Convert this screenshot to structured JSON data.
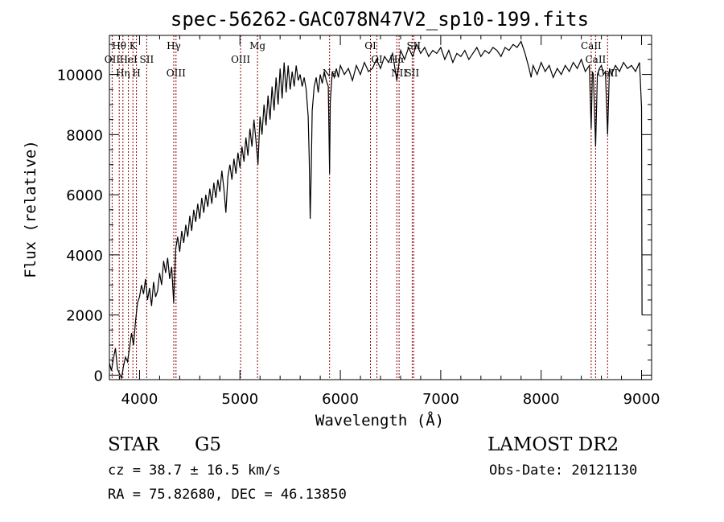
{
  "chart_data": {
    "type": "line",
    "title": "spec-56262-GAC078N47V2_sp10-199.fits",
    "xlabel": "Wavelength (Å)",
    "ylabel": "Flux (relative)",
    "xlim": [
      3700,
      9100
    ],
    "ylim": [
      -150,
      11300
    ],
    "x_ticks": [
      4000,
      5000,
      6000,
      7000,
      8000,
      9000
    ],
    "y_ticks": [
      0,
      2000,
      4000,
      6000,
      8000,
      10000
    ],
    "grid": false,
    "colors": {
      "spectrum": "#000000",
      "line_markers": "#8b0000",
      "axes": "#000000"
    },
    "series": [
      {
        "points": [
          [
            3700,
            400
          ],
          [
            3720,
            150
          ],
          [
            3740,
            550
          ],
          [
            3760,
            900
          ],
          [
            3780,
            200
          ],
          [
            3800,
            50
          ],
          [
            3820,
            -100
          ],
          [
            3840,
            300
          ],
          [
            3860,
            600
          ],
          [
            3880,
            450
          ],
          [
            3900,
            900
          ],
          [
            3920,
            1400
          ],
          [
            3940,
            1000
          ],
          [
            3960,
            1800
          ],
          [
            3980,
            2400
          ],
          [
            4000,
            2600
          ],
          [
            4020,
            3000
          ],
          [
            4040,
            2700
          ],
          [
            4060,
            3200
          ],
          [
            4080,
            2500
          ],
          [
            4100,
            2900
          ],
          [
            4120,
            2300
          ],
          [
            4140,
            3100
          ],
          [
            4160,
            2600
          ],
          [
            4180,
            2800
          ],
          [
            4200,
            3400
          ],
          [
            4220,
            3000
          ],
          [
            4240,
            3800
          ],
          [
            4260,
            3400
          ],
          [
            4280,
            3900
          ],
          [
            4300,
            3200
          ],
          [
            4320,
            3600
          ],
          [
            4340,
            2400
          ],
          [
            4360,
            4200
          ],
          [
            4380,
            4600
          ],
          [
            4400,
            4100
          ],
          [
            4420,
            4800
          ],
          [
            4440,
            4400
          ],
          [
            4460,
            5000
          ],
          [
            4480,
            4600
          ],
          [
            4500,
            5300
          ],
          [
            4520,
            4800
          ],
          [
            4540,
            5500
          ],
          [
            4560,
            5100
          ],
          [
            4580,
            5700
          ],
          [
            4600,
            5200
          ],
          [
            4620,
            5900
          ],
          [
            4640,
            5400
          ],
          [
            4660,
            6000
          ],
          [
            4680,
            5600
          ],
          [
            4700,
            6200
          ],
          [
            4720,
            5700
          ],
          [
            4740,
            6400
          ],
          [
            4760,
            5900
          ],
          [
            4780,
            6500
          ],
          [
            4800,
            6100
          ],
          [
            4820,
            6800
          ],
          [
            4840,
            6200
          ],
          [
            4860,
            5400
          ],
          [
            4880,
            6600
          ],
          [
            4900,
            7000
          ],
          [
            4920,
            6500
          ],
          [
            4940,
            7200
          ],
          [
            4960,
            6700
          ],
          [
            4980,
            7400
          ],
          [
            5000,
            6900
          ],
          [
            5020,
            7600
          ],
          [
            5040,
            7100
          ],
          [
            5060,
            7900
          ],
          [
            5080,
            7300
          ],
          [
            5100,
            8200
          ],
          [
            5120,
            7600
          ],
          [
            5140,
            8500
          ],
          [
            5160,
            7800
          ],
          [
            5180,
            7000
          ],
          [
            5200,
            8600
          ],
          [
            5220,
            8000
          ],
          [
            5240,
            9000
          ],
          [
            5260,
            8300
          ],
          [
            5280,
            9300
          ],
          [
            5300,
            8500
          ],
          [
            5320,
            9600
          ],
          [
            5340,
            8800
          ],
          [
            5360,
            9900
          ],
          [
            5380,
            9000
          ],
          [
            5400,
            10200
          ],
          [
            5420,
            9200
          ],
          [
            5440,
            10400
          ],
          [
            5460,
            9400
          ],
          [
            5480,
            10300
          ],
          [
            5500,
            9500
          ],
          [
            5520,
            10100
          ],
          [
            5540,
            9600
          ],
          [
            5560,
            10300
          ],
          [
            5580,
            9800
          ],
          [
            5600,
            10000
          ],
          [
            5620,
            9600
          ],
          [
            5640,
            9900
          ],
          [
            5660,
            9500
          ],
          [
            5680,
            8600
          ],
          [
            5690,
            7200
          ],
          [
            5700,
            5200
          ],
          [
            5710,
            6800
          ],
          [
            5720,
            8800
          ],
          [
            5740,
            9600
          ],
          [
            5760,
            9900
          ],
          [
            5780,
            9400
          ],
          [
            5800,
            10000
          ],
          [
            5820,
            9700
          ],
          [
            5840,
            10100
          ],
          [
            5860,
            9800
          ],
          [
            5880,
            9600
          ],
          [
            5893,
            6700
          ],
          [
            5900,
            9100
          ],
          [
            5920,
            10100
          ],
          [
            5940,
            9900
          ],
          [
            5960,
            10200
          ],
          [
            5980,
            9900
          ],
          [
            6000,
            10300
          ],
          [
            6040,
            10000
          ],
          [
            6080,
            10200
          ],
          [
            6120,
            9800
          ],
          [
            6160,
            10300
          ],
          [
            6200,
            10000
          ],
          [
            6240,
            10400
          ],
          [
            6280,
            10100
          ],
          [
            6320,
            10200
          ],
          [
            6360,
            10500
          ],
          [
            6400,
            10200
          ],
          [
            6440,
            10600
          ],
          [
            6480,
            10400
          ],
          [
            6520,
            10700
          ],
          [
            6563,
            9800
          ],
          [
            6600,
            10800
          ],
          [
            6640,
            10500
          ],
          [
            6680,
            10900
          ],
          [
            6720,
            10600
          ],
          [
            6760,
            11000
          ],
          [
            6800,
            10700
          ],
          [
            6840,
            10900
          ],
          [
            6880,
            10600
          ],
          [
            6920,
            10800
          ],
          [
            6960,
            10700
          ],
          [
            7000,
            10900
          ],
          [
            7040,
            10500
          ],
          [
            7080,
            10800
          ],
          [
            7120,
            10400
          ],
          [
            7160,
            10700
          ],
          [
            7200,
            10600
          ],
          [
            7240,
            10800
          ],
          [
            7280,
            10500
          ],
          [
            7320,
            10700
          ],
          [
            7360,
            10900
          ],
          [
            7400,
            10600
          ],
          [
            7440,
            10800
          ],
          [
            7480,
            10700
          ],
          [
            7520,
            10900
          ],
          [
            7560,
            10800
          ],
          [
            7600,
            10600
          ],
          [
            7640,
            10900
          ],
          [
            7680,
            10800
          ],
          [
            7720,
            11000
          ],
          [
            7760,
            10900
          ],
          [
            7800,
            11100
          ],
          [
            7840,
            10700
          ],
          [
            7880,
            10200
          ],
          [
            7900,
            9900
          ],
          [
            7920,
            10300
          ],
          [
            7960,
            10000
          ],
          [
            8000,
            10400
          ],
          [
            8040,
            10100
          ],
          [
            8080,
            10300
          ],
          [
            8120,
            9900
          ],
          [
            8160,
            10200
          ],
          [
            8200,
            10000
          ],
          [
            8240,
            10300
          ],
          [
            8280,
            10100
          ],
          [
            8320,
            10400
          ],
          [
            8360,
            10200
          ],
          [
            8400,
            10500
          ],
          [
            8440,
            10100
          ],
          [
            8480,
            10300
          ],
          [
            8498,
            8200
          ],
          [
            8510,
            10100
          ],
          [
            8520,
            10000
          ],
          [
            8542,
            7600
          ],
          [
            8560,
            10000
          ],
          [
            8580,
            10200
          ],
          [
            8600,
            10300
          ],
          [
            8620,
            10000
          ],
          [
            8640,
            10100
          ],
          [
            8662,
            8000
          ],
          [
            8680,
            10200
          ],
          [
            8700,
            10000
          ],
          [
            8740,
            10300
          ],
          [
            8780,
            10100
          ],
          [
            8820,
            10400
          ],
          [
            8860,
            10200
          ],
          [
            8900,
            10300
          ],
          [
            8940,
            10100
          ],
          [
            8980,
            10400
          ],
          [
            9000,
            8900
          ],
          [
            9005,
            2000
          ]
        ]
      }
    ],
    "line_markers": [
      {
        "label": "Hθ",
        "wl": 3798,
        "row": 1
      },
      {
        "label": "OII",
        "wl": 3727,
        "row": 2
      },
      {
        "label": "Hη",
        "wl": 3835,
        "row": 3
      },
      {
        "label": "HeI",
        "wl": 3889,
        "row": 2
      },
      {
        "label": "K",
        "wl": 3934,
        "row": 1
      },
      {
        "label": "H",
        "wl": 3969,
        "row": 3
      },
      {
        "label": "SII",
        "wl": 4072,
        "row": 2
      },
      {
        "label": "Hγ",
        "wl": 4341,
        "row": 1
      },
      {
        "label": "OIII",
        "wl": 4363,
        "row": 3
      },
      {
        "label": "OIII",
        "wl": 5007,
        "row": 2
      },
      {
        "label": "Mg",
        "wl": 5175,
        "row": 1
      },
      {
        "label": "Na",
        "wl": 5893,
        "row": 3
      },
      {
        "label": "OI",
        "wl": 6300,
        "row": 1
      },
      {
        "label": "OI",
        "wl": 6364,
        "row": 2
      },
      {
        "label": "Hα",
        "wl": 6563,
        "row": 2
      },
      {
        "label": "NII",
        "wl": 6585,
        "row": 3
      },
      {
        "label": "SII",
        "wl": 6716,
        "row": 3
      },
      {
        "label": "SII",
        "wl": 6731,
        "row": 1
      },
      {
        "label": "CaII",
        "wl": 8498,
        "row": 1
      },
      {
        "label": "CaII",
        "wl": 8542,
        "row": 2
      },
      {
        "label": "CaII",
        "wl": 8662,
        "row": 3
      }
    ]
  },
  "info": {
    "class": "STAR",
    "subclass": "G5",
    "survey": "LAMOST DR2",
    "redshift": "cz = 38.7 ± 16.5 km/s",
    "obs_date": "Obs-Date: 20121130",
    "coords": "RA =  75.82680, DEC =  46.13850"
  }
}
